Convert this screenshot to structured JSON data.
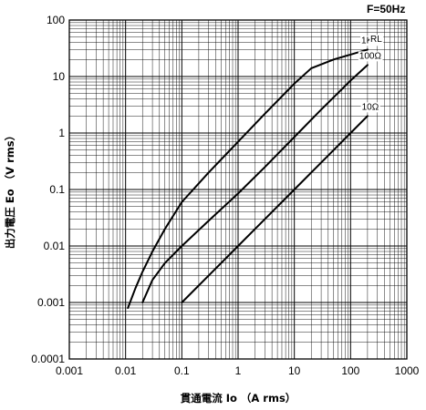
{
  "chart_data": {
    "type": "line",
    "title": "",
    "note": "F=50Hz",
    "xlabel": "貫通電流 Io （A rms）",
    "ylabel": "出力電圧 Eo （V rms）",
    "x_scale": "log",
    "y_scale": "log",
    "xlim": [
      0.001,
      1000
    ],
    "ylim": [
      0.0001,
      100
    ],
    "grid": true,
    "x_ticks": [
      "0.001",
      "0.01",
      "0.1",
      "1",
      "10",
      "100",
      "1000"
    ],
    "y_ticks": [
      "100",
      "10",
      "1",
      "0.1",
      "0.01",
      "0.001",
      "0.0001"
    ],
    "legend_title": "RL",
    "series": [
      {
        "name": "1KΩ",
        "x": [
          0.011,
          0.015,
          0.02,
          0.03,
          0.05,
          0.1,
          0.3,
          1,
          3,
          10,
          20,
          50,
          200
        ],
        "y": [
          0.0008,
          0.0018,
          0.0035,
          0.008,
          0.02,
          0.06,
          0.2,
          0.7,
          2.2,
          7.5,
          14,
          20,
          30
        ]
      },
      {
        "name": "100Ω",
        "x": [
          0.02,
          0.03,
          0.05,
          0.1,
          0.3,
          1,
          3,
          10,
          30,
          100,
          200
        ],
        "y": [
          0.001,
          0.0025,
          0.005,
          0.01,
          0.028,
          0.085,
          0.25,
          0.85,
          2.6,
          8.5,
          16
        ]
      },
      {
        "name": "10Ω",
        "x": [
          0.1,
          0.3,
          1,
          3,
          10,
          30,
          100,
          200
        ],
        "y": [
          0.001,
          0.003,
          0.01,
          0.03,
          0.1,
          0.3,
          1,
          2
        ]
      }
    ]
  }
}
